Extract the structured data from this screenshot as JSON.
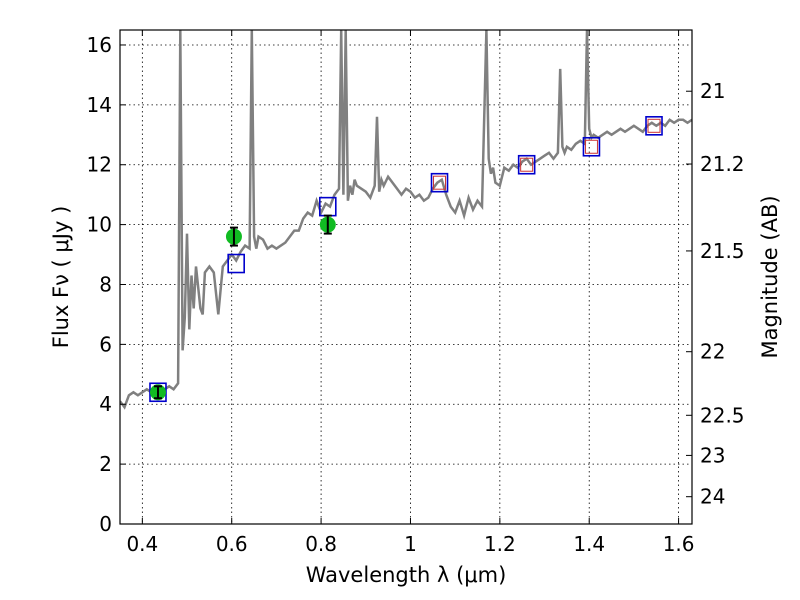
{
  "chart_data": {
    "type": "line",
    "xlabel": "Wavelength  λ (μm)",
    "ylabel": "Flux  Fν  ( μJy )",
    "y2label": "Magnitude (AB)",
    "xlim": [
      0.35,
      1.63
    ],
    "ylim": [
      0,
      16.5
    ],
    "grid": true,
    "x_ticks": [
      0.4,
      0.6,
      0.8,
      1.0,
      1.2,
      1.4,
      1.6
    ],
    "x_tick_labels": [
      "0.4",
      "0.6",
      "0.8",
      "1",
      "1.2",
      "1.4",
      "1.6"
    ],
    "y_ticks": [
      0,
      2,
      4,
      6,
      8,
      10,
      12,
      14,
      16
    ],
    "y_tick_labels": [
      "0",
      "2",
      "4",
      "6",
      "8",
      "10",
      "12",
      "14",
      "16"
    ],
    "y2_ticks": [
      21,
      21.2,
      21.5,
      22,
      22.5,
      23,
      24
    ],
    "y2_tick_labels": [
      "21",
      "21.2",
      "21.5",
      "22",
      "22.5",
      "23",
      "24"
    ],
    "colors": {
      "spectrum": "#808080",
      "model_box": "#0000cc",
      "model_inner": "#cc3333",
      "observed": "#11bb22",
      "errorbar": "#000000"
    },
    "series": [
      {
        "type": "line",
        "x": [
          0.35,
          0.36,
          0.37,
          0.38,
          0.39,
          0.4,
          0.41,
          0.42,
          0.43,
          0.44,
          0.45,
          0.46,
          0.47,
          0.48,
          0.485,
          0.49,
          0.495,
          0.5,
          0.505,
          0.51,
          0.515,
          0.52,
          0.53,
          0.535,
          0.54,
          0.55,
          0.56,
          0.57,
          0.58,
          0.59,
          0.6,
          0.61,
          0.62,
          0.63,
          0.64,
          0.645,
          0.65,
          0.655,
          0.66,
          0.67,
          0.68,
          0.69,
          0.7,
          0.71,
          0.72,
          0.73,
          0.74,
          0.75,
          0.76,
          0.77,
          0.78,
          0.79,
          0.8,
          0.81,
          0.82,
          0.83,
          0.84,
          0.845,
          0.85,
          0.855,
          0.86,
          0.865,
          0.87,
          0.875,
          0.88,
          0.89,
          0.9,
          0.91,
          0.92,
          0.925,
          0.93,
          0.935,
          0.94,
          0.95,
          0.96,
          0.97,
          0.98,
          0.99,
          1.0,
          1.01,
          1.02,
          1.03,
          1.04,
          1.05,
          1.06,
          1.07,
          1.08,
          1.09,
          1.1,
          1.11,
          1.12,
          1.13,
          1.14,
          1.15,
          1.16,
          1.17,
          1.175,
          1.18,
          1.185,
          1.19,
          1.2,
          1.21,
          1.22,
          1.23,
          1.24,
          1.25,
          1.26,
          1.27,
          1.28,
          1.29,
          1.3,
          1.31,
          1.32,
          1.33,
          1.335,
          1.34,
          1.345,
          1.35,
          1.36,
          1.37,
          1.38,
          1.39,
          1.395,
          1.4,
          1.405,
          1.41,
          1.42,
          1.43,
          1.44,
          1.45,
          1.46,
          1.47,
          1.48,
          1.49,
          1.5,
          1.51,
          1.52,
          1.53,
          1.54,
          1.55,
          1.56,
          1.57,
          1.58,
          1.59,
          1.6,
          1.61,
          1.62,
          1.63
        ],
        "y": [
          4.1,
          3.9,
          4.3,
          4.4,
          4.3,
          4.4,
          4.5,
          4.4,
          4.5,
          4.4,
          4.5,
          4.6,
          4.5,
          4.7,
          16.5,
          5.8,
          6.9,
          9.7,
          6.5,
          8.3,
          7.2,
          8.6,
          7.2,
          7.0,
          8.4,
          8.6,
          8.4,
          7.0,
          8.6,
          8.8,
          9.0,
          8.8,
          9.1,
          9.3,
          9.2,
          16.5,
          9.6,
          9.2,
          9.6,
          9.5,
          9.2,
          9.3,
          9.2,
          9.3,
          9.4,
          9.6,
          9.8,
          9.8,
          10.2,
          10.4,
          10.3,
          10.8,
          10.4,
          10.7,
          10.6,
          11.0,
          11.2,
          16.5,
          11.0,
          16.5,
          10.8,
          11.3,
          11.0,
          11.5,
          11.3,
          11.2,
          11.1,
          10.9,
          11.3,
          13.6,
          11.1,
          11.5,
          11.3,
          11.6,
          11.4,
          11.2,
          11.0,
          11.2,
          11.1,
          10.9,
          11.0,
          10.8,
          10.9,
          11.2,
          11.4,
          11.5,
          11.0,
          10.6,
          10.4,
          10.8,
          10.3,
          10.9,
          10.5,
          10.8,
          10.6,
          16.5,
          12.2,
          11.7,
          11.9,
          11.4,
          11.3,
          11.9,
          11.8,
          12.0,
          11.9,
          12.1,
          12.2,
          12.0,
          12.1,
          12.2,
          12.3,
          12.4,
          12.2,
          12.4,
          15.2,
          12.6,
          12.4,
          12.6,
          12.5,
          12.7,
          12.8,
          12.7,
          16.5,
          13.2,
          12.9,
          13.0,
          12.9,
          13.0,
          13.1,
          13.0,
          13.1,
          13.2,
          13.1,
          13.2,
          13.3,
          13.2,
          13.1,
          13.3,
          13.4,
          13.3,
          13.4,
          13.3,
          13.5,
          13.4,
          13.5,
          13.5,
          13.4,
          13.5
        ]
      },
      {
        "type": "model_boxes",
        "x": [
          0.435,
          0.61,
          0.815,
          1.065,
          1.26,
          1.405,
          1.545
        ],
        "y": [
          4.4,
          8.7,
          10.6,
          11.4,
          12.0,
          12.6,
          13.3
        ],
        "inner": [
          false,
          false,
          false,
          true,
          true,
          true,
          true
        ]
      },
      {
        "type": "points",
        "x": [
          0.435,
          0.605,
          0.815
        ],
        "y": [
          4.4,
          9.6,
          10.0
        ],
        "err": [
          0.2,
          0.3,
          0.3
        ]
      }
    ]
  }
}
